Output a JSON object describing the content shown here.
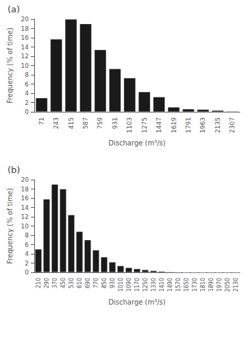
{
  "chart_data": [
    {
      "type": "bar",
      "title": "(a)",
      "categories": [
        "71",
        "243",
        "415",
        "587",
        "759",
        "931",
        "1103",
        "1275",
        "1447",
        "1619",
        "1791",
        "1963",
        "2135",
        "2307"
      ],
      "values": [
        3.0,
        15.7,
        20.0,
        19.0,
        13.4,
        9.3,
        7.3,
        4.3,
        3.2,
        1.0,
        0.6,
        0.5,
        0.3,
        0.1
      ],
      "xlabel": "Discharge (m³/s)",
      "ylabel": "Frequency (% of time)",
      "color": "#1a1a1a",
      "ylim": [
        0,
        20
      ],
      "yticks": [
        0,
        2,
        4,
        6,
        8,
        10,
        12,
        14,
        16,
        18,
        20
      ],
      "grid": false
    },
    {
      "type": "bar",
      "title": "(b)",
      "categories": [
        "210",
        "290",
        "370",
        "450",
        "530",
        "610",
        "690",
        "770",
        "850",
        "930",
        "1010",
        "1090",
        "1170",
        "1250",
        "1330",
        "1410",
        "1490",
        "1570",
        "1650",
        "1730",
        "1810",
        "1890",
        "1970",
        "2050",
        "2130"
      ],
      "values": [
        5.0,
        15.8,
        19.0,
        18.0,
        12.4,
        8.8,
        7.0,
        4.8,
        3.3,
        2.2,
        1.4,
        1.0,
        0.75,
        0.55,
        0.35,
        0.2,
        0.1,
        0.05,
        0.0,
        0.0,
        0.0,
        0.0,
        0.0,
        0.0,
        0.0
      ],
      "xlabel": "Discharge (m³/s)",
      "ylabel": "Frequency (% of time)",
      "color": "#1a1a1a",
      "ylim": [
        0,
        20
      ],
      "yticks": [
        0,
        2,
        4,
        6,
        8,
        10,
        12,
        14,
        16,
        18,
        20
      ],
      "grid": false
    }
  ]
}
